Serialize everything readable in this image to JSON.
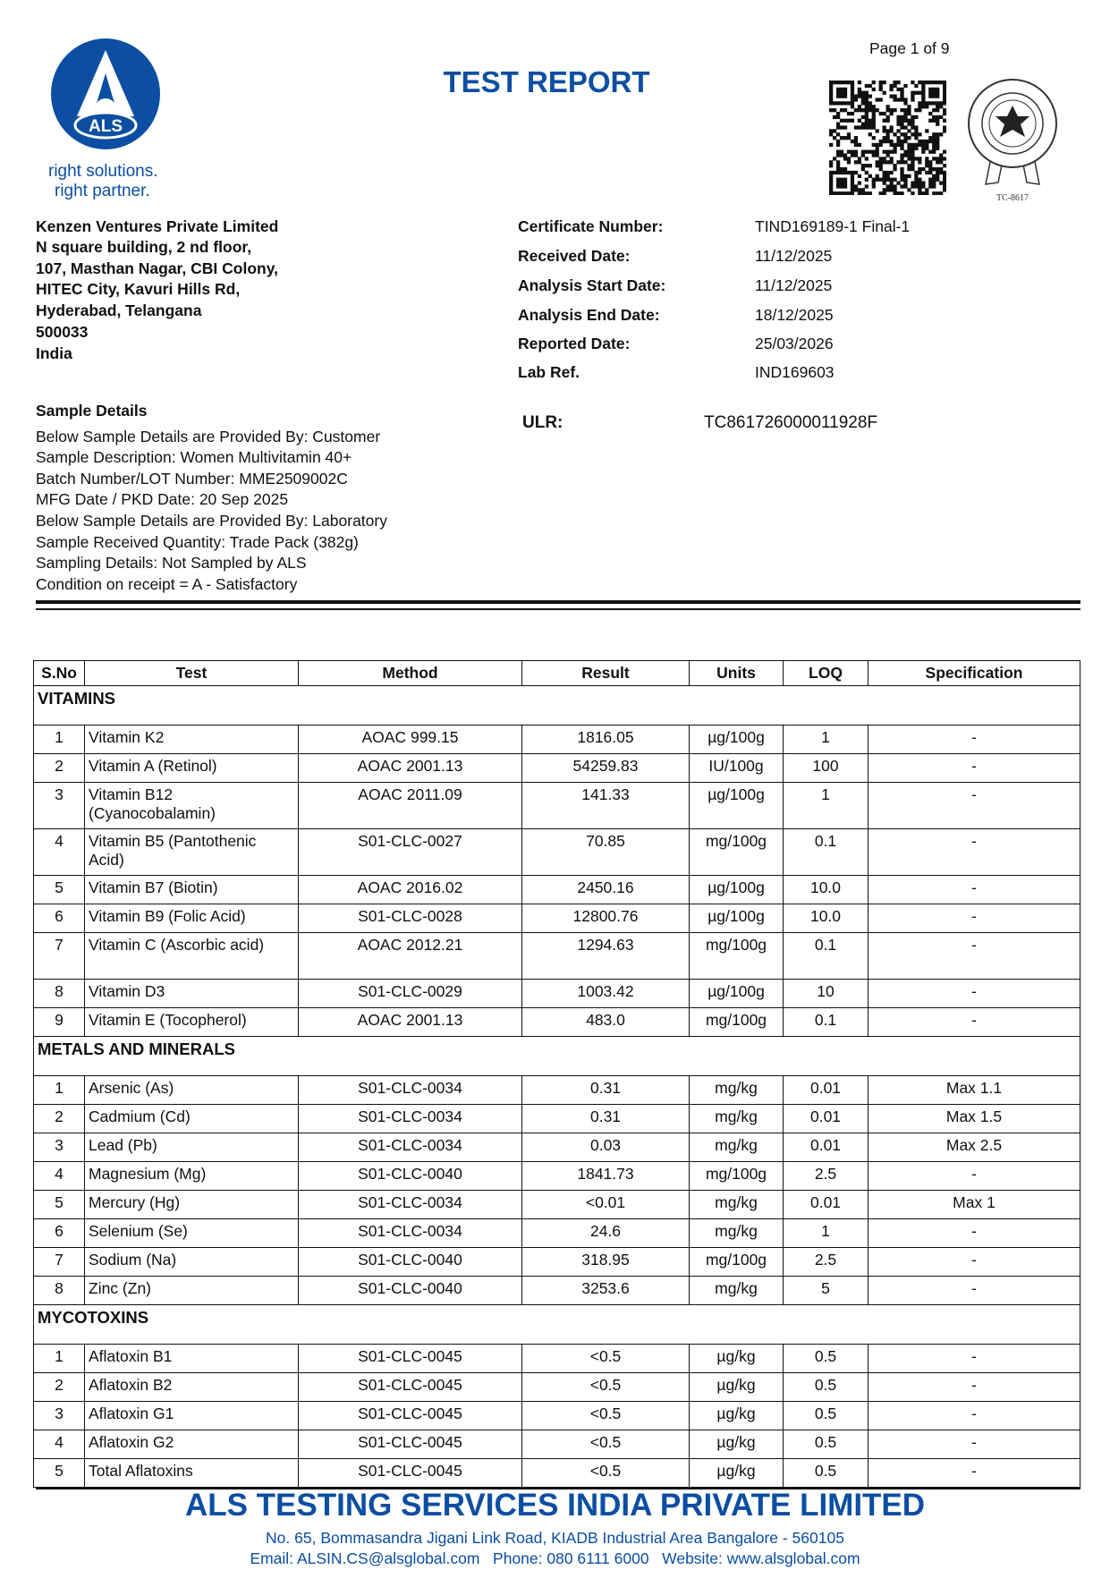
{
  "header": {
    "page": "Page 1 of 9",
    "title": "TEST REPORT",
    "logo_text": "ALS",
    "tagline": [
      "right solutions.",
      "right partner."
    ],
    "accreditation_code": "TC-8617",
    "brand_color": "#0b4ea2"
  },
  "client": {
    "lines": [
      "Kenzen Ventures Private Limited",
      "N square building, 2 nd floor,",
      "107,  Masthan Nagar, CBI Colony,",
      "HITEC City, Kavuri Hills Rd,",
      "Hyderabad, Telangana",
      "500033",
      "India"
    ]
  },
  "certificate": [
    {
      "label": "Certificate Number:",
      "value": "TIND169189-1 Final-1"
    },
    {
      "label": "Received Date:",
      "value": "11/12/2025"
    },
    {
      "label": "Analysis Start Date:",
      "value": "11/12/2025"
    },
    {
      "label": "Analysis End Date:",
      "value": "18/12/2025"
    },
    {
      "label": "Reported Date:",
      "value": "25/03/2026"
    },
    {
      "label": "Lab Ref.",
      "value": "IND169603"
    }
  ],
  "ulr": {
    "label": "ULR:",
    "value": "TC861726000011928F"
  },
  "sample": {
    "title": "Sample Details",
    "lines": [
      "Below Sample Details are Provided By: Customer",
      "Sample Description: Women Multivitamin 40+",
      "Batch Number/LOT Number: MME2509002C",
      "MFG Date / PKD Date: 20 Sep 2025",
      "Below Sample Details are Provided By: Laboratory",
      "Sample Received Quantity: Trade Pack (382g)",
      "Sampling Details: Not Sampled by ALS",
      "Condition on receipt = A - Satisfactory"
    ]
  },
  "table": {
    "columns": [
      "S.No",
      "Test",
      "Method",
      "Result",
      "Units",
      "LOQ",
      "Specification"
    ],
    "sections": [
      {
        "name": "VITAMINS",
        "rows": [
          [
            "1",
            "Vitamin K2",
            "AOAC 999.15",
            "1816.05",
            "µg/100g",
            "1",
            "-"
          ],
          [
            "2",
            "Vitamin A (Retinol)",
            "AOAC 2001.13",
            "54259.83",
            "IU/100g",
            "100",
            "-"
          ],
          [
            "3",
            "Vitamin B12 (Cyanocobalamin)",
            "AOAC 2011.09",
            "141.33",
            "µg/100g",
            "1",
            "-"
          ],
          [
            "4",
            "Vitamin B5 (Pantothenic Acid)",
            "S01-CLC-0027",
            "70.85",
            "mg/100g",
            "0.1",
            "-"
          ],
          [
            "5",
            "Vitamin B7 (Biotin)",
            "AOAC 2016.02",
            "2450.16",
            "µg/100g",
            "10.0",
            "-"
          ],
          [
            "6",
            "Vitamin B9 (Folic Acid)",
            "S01-CLC-0028",
            "12800.76",
            "µg/100g",
            "10.0",
            "-"
          ],
          [
            "7",
            "Vitamin C (Ascorbic acid)",
            "AOAC 2012.21",
            "1294.63",
            "mg/100g",
            "0.1",
            "-"
          ],
          [
            "8",
            "Vitamin D3",
            "S01-CLC-0029",
            "1003.42",
            "µg/100g",
            "10",
            "-"
          ],
          [
            "9",
            "Vitamin E (Tocopherol)",
            "AOAC 2001.13",
            "483.0",
            "mg/100g",
            "0.1",
            "-"
          ]
        ]
      },
      {
        "name": "METALS AND MINERALS",
        "rows": [
          [
            "1",
            "Arsenic (As)",
            "S01-CLC-0034",
            "0.31",
            "mg/kg",
            "0.01",
            "Max 1.1"
          ],
          [
            "2",
            "Cadmium (Cd)",
            "S01-CLC-0034",
            "0.31",
            "mg/kg",
            "0.01",
            "Max 1.5"
          ],
          [
            "3",
            "Lead (Pb)",
            "S01-CLC-0034",
            "0.03",
            "mg/kg",
            "0.01",
            "Max 2.5"
          ],
          [
            "4",
            "Magnesium (Mg)",
            "S01-CLC-0040",
            "1841.73",
            "mg/100g",
            "2.5",
            "-"
          ],
          [
            "5",
            "Mercury (Hg)",
            "S01-CLC-0034",
            "<0.01",
            "mg/kg",
            "0.01",
            "Max 1"
          ],
          [
            "6",
            "Selenium (Se)",
            "S01-CLC-0034",
            "24.6",
            "mg/kg",
            "1",
            "-"
          ],
          [
            "7",
            "Sodium (Na)",
            "S01-CLC-0040",
            "318.95",
            "mg/100g",
            "2.5",
            "-"
          ],
          [
            "8",
            "Zinc (Zn)",
            "S01-CLC-0040",
            "3253.6",
            "mg/kg",
            "5",
            "-"
          ]
        ]
      },
      {
        "name": "MYCOTOXINS",
        "rows": [
          [
            "1",
            "Aflatoxin B1",
            "S01-CLC-0045",
            "<0.5",
            "µg/kg",
            "0.5",
            "-"
          ],
          [
            "2",
            "Aflatoxin B2",
            "S01-CLC-0045",
            "<0.5",
            "µg/kg",
            "0.5",
            "-"
          ],
          [
            "3",
            "Aflatoxin G1",
            "S01-CLC-0045",
            "<0.5",
            "µg/kg",
            "0.5",
            "-"
          ],
          [
            "4",
            "Aflatoxin G2",
            "S01-CLC-0045",
            "<0.5",
            "µg/kg",
            "0.5",
            "-"
          ],
          [
            "5",
            "Total Aflatoxins",
            "S01-CLC-0045",
            "<0.5",
            "µg/kg",
            "0.5",
            "-"
          ]
        ]
      }
    ]
  },
  "footer": {
    "company": "ALS TESTING SERVICES INDIA PRIVATE LIMITED",
    "address": "No. 65, Bommasandra Jigani Link Road, KIADB Industrial Area Bangalore - 560105",
    "contact": "Email: ALSIN.CS@alsglobal.com   Phone: 080 6111 6000   Website: www.alsglobal.com"
  }
}
